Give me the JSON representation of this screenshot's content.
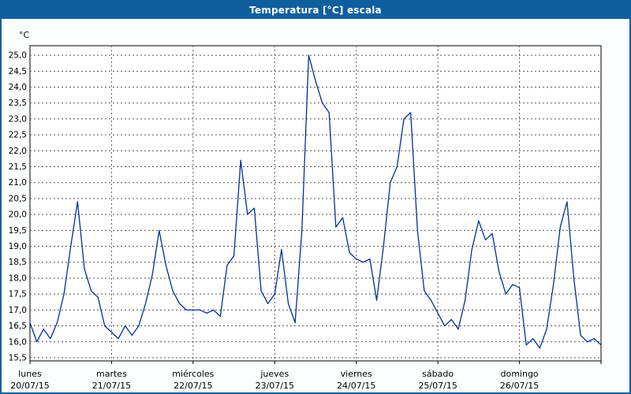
{
  "window": {
    "title": "Temperatura [°C] escala"
  },
  "colors": {
    "titlebar_bg": "#0f5f9e",
    "window_border": "#0f5f9e",
    "plot_bg": "#ffffff",
    "plot_border": "#000000",
    "grid": "#555555",
    "text": "#000000",
    "line": "#002f9e"
  },
  "chart_data": {
    "type": "line",
    "title": "Temperatura [°C] escala",
    "ylabel": "°C",
    "xlabel": "",
    "ylim": [
      15.5,
      25.0
    ],
    "y_tick_step": 0.5,
    "decimal_separator": ",",
    "grid": true,
    "legend": "none",
    "x_axis_days": [
      {
        "name": "lunes",
        "date": "20/07/15"
      },
      {
        "name": "martes",
        "date": "21/07/15"
      },
      {
        "name": "miércoles",
        "date": "22/07/15"
      },
      {
        "name": "jueves",
        "date": "23/07/15"
      },
      {
        "name": "viernes",
        "date": "24/07/15"
      },
      {
        "name": "sábado",
        "date": "25/07/15"
      },
      {
        "name": "domingo",
        "date": "26/07/15"
      }
    ],
    "samples_per_day": 12,
    "x_start_day": 0,
    "series": [
      {
        "name": "Temperatura",
        "color": "#002f9e",
        "values": [
          16.6,
          16.0,
          16.4,
          16.1,
          16.6,
          17.5,
          19.0,
          20.4,
          18.3,
          17.6,
          17.4,
          16.5,
          16.3,
          16.1,
          16.5,
          16.2,
          16.5,
          17.2,
          18.1,
          19.5,
          18.4,
          17.6,
          17.2,
          17.0,
          17.0,
          17.0,
          16.9,
          17.0,
          16.8,
          18.4,
          18.7,
          21.7,
          20.0,
          20.2,
          17.6,
          17.2,
          17.5,
          18.9,
          17.2,
          16.6,
          19.5,
          25.0,
          24.2,
          23.5,
          23.2,
          19.6,
          19.9,
          18.8,
          18.6,
          18.5,
          18.6,
          17.3,
          19.0,
          21.0,
          21.5,
          23.0,
          23.2,
          19.5,
          17.6,
          17.3,
          16.9,
          16.5,
          16.7,
          16.4,
          17.3,
          18.9,
          19.8,
          19.2,
          19.4,
          18.2,
          17.5,
          17.8,
          17.7,
          15.9,
          16.1,
          15.8,
          16.4,
          17.8,
          19.6,
          20.4,
          18.0,
          16.2,
          16.0,
          16.1,
          15.9
        ]
      }
    ]
  }
}
